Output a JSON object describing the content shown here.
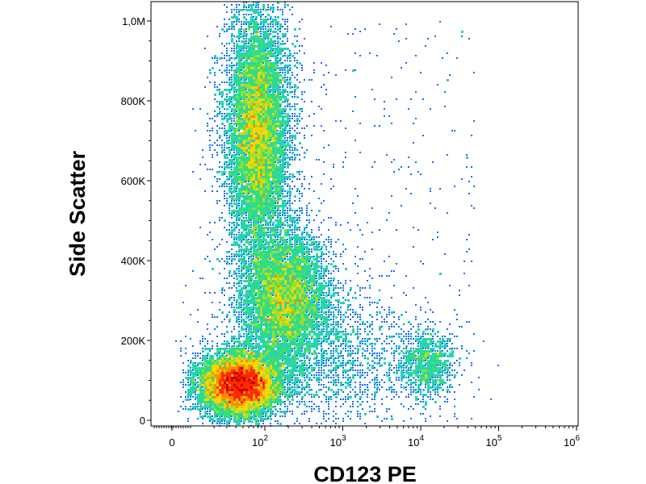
{
  "chart_data": {
    "type": "scatter",
    "style": "pseudocolor density dot plot",
    "xlabel": "CD123 PE",
    "ylabel": "Side Scatter",
    "x_scale": "biexponential",
    "y_scale": "linear",
    "ylim": [
      0,
      1050000
    ],
    "xlim_decades": [
      -0.2,
      6.0
    ],
    "grid": false,
    "legend": "none",
    "x_ticks": [
      {
        "label": "0",
        "base": "",
        "exp": ""
      },
      {
        "label": "10^2",
        "base": "10",
        "exp": "2"
      },
      {
        "label": "10^3",
        "base": "10",
        "exp": "3"
      },
      {
        "label": "10^4",
        "base": "10",
        "exp": "4"
      },
      {
        "label": "10^5",
        "base": "10",
        "exp": "5"
      },
      {
        "label": "10^6",
        "base": "10",
        "exp": "6"
      }
    ],
    "y_ticks": [
      {
        "value": 0,
        "label": "0"
      },
      {
        "value": 200000,
        "label": "200K"
      },
      {
        "value": 400000,
        "label": "400K"
      },
      {
        "value": 600000,
        "label": "600K"
      },
      {
        "value": 800000,
        "label": "800K"
      },
      {
        "value": 1000000,
        "label": "1,0M"
      }
    ],
    "density_colors": [
      "#0000cc",
      "#0a6cff",
      "#19b2ff",
      "#26d4b0",
      "#39e070",
      "#9be02a",
      "#ffd400",
      "#ff8c00",
      "#ff2a00",
      "#cc0000"
    ],
    "populations": [
      {
        "x_center": 80,
        "y_center": 720000,
        "x_spread_decades": 0.22,
        "y_spread": 160000,
        "events": 9000
      },
      {
        "x_center": 180,
        "y_center": 310000,
        "x_spread_decades": 0.3,
        "y_spread": 85000,
        "events": 6000
      },
      {
        "x_center": 45,
        "y_center": 90000,
        "x_spread_decades": 0.28,
        "y_spread": 40000,
        "events": 9000
      },
      {
        "x_center": 12000,
        "y_center": 140000,
        "x_spread_decades": 0.18,
        "y_spread": 40000,
        "events": 900
      },
      {
        "x_center": 600,
        "y_center": 150000,
        "x_spread_decades": 0.7,
        "y_spread": 90000,
        "events": 1800
      }
    ]
  }
}
